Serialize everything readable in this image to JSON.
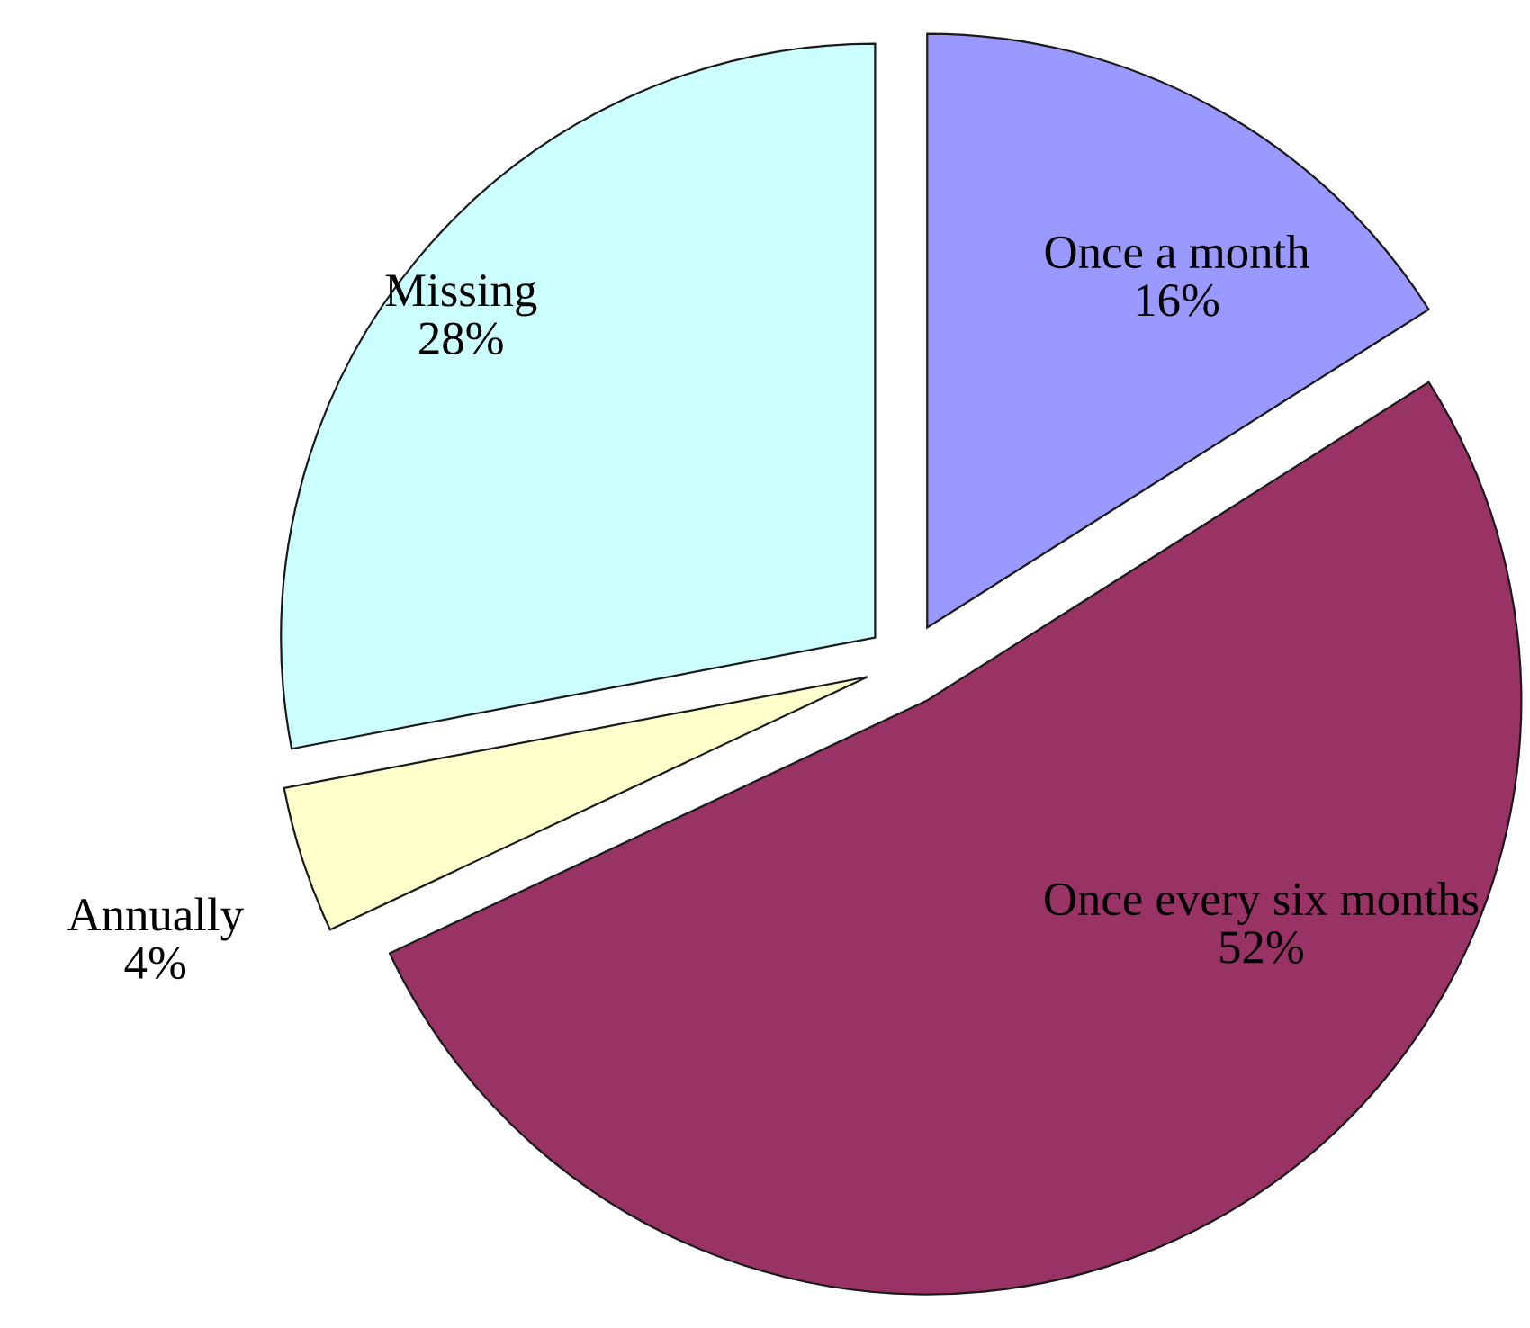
{
  "chart_data": {
    "type": "pie",
    "categories": [
      "Once a month",
      "Once every six months",
      "Annually",
      "Missing"
    ],
    "values": [
      16,
      52,
      4,
      28
    ],
    "value_labels": [
      "16%",
      "52%",
      "4%",
      "28%"
    ],
    "colors": [
      "#9999ff",
      "#993366",
      "#ffffcc",
      "#ccffff"
    ]
  }
}
